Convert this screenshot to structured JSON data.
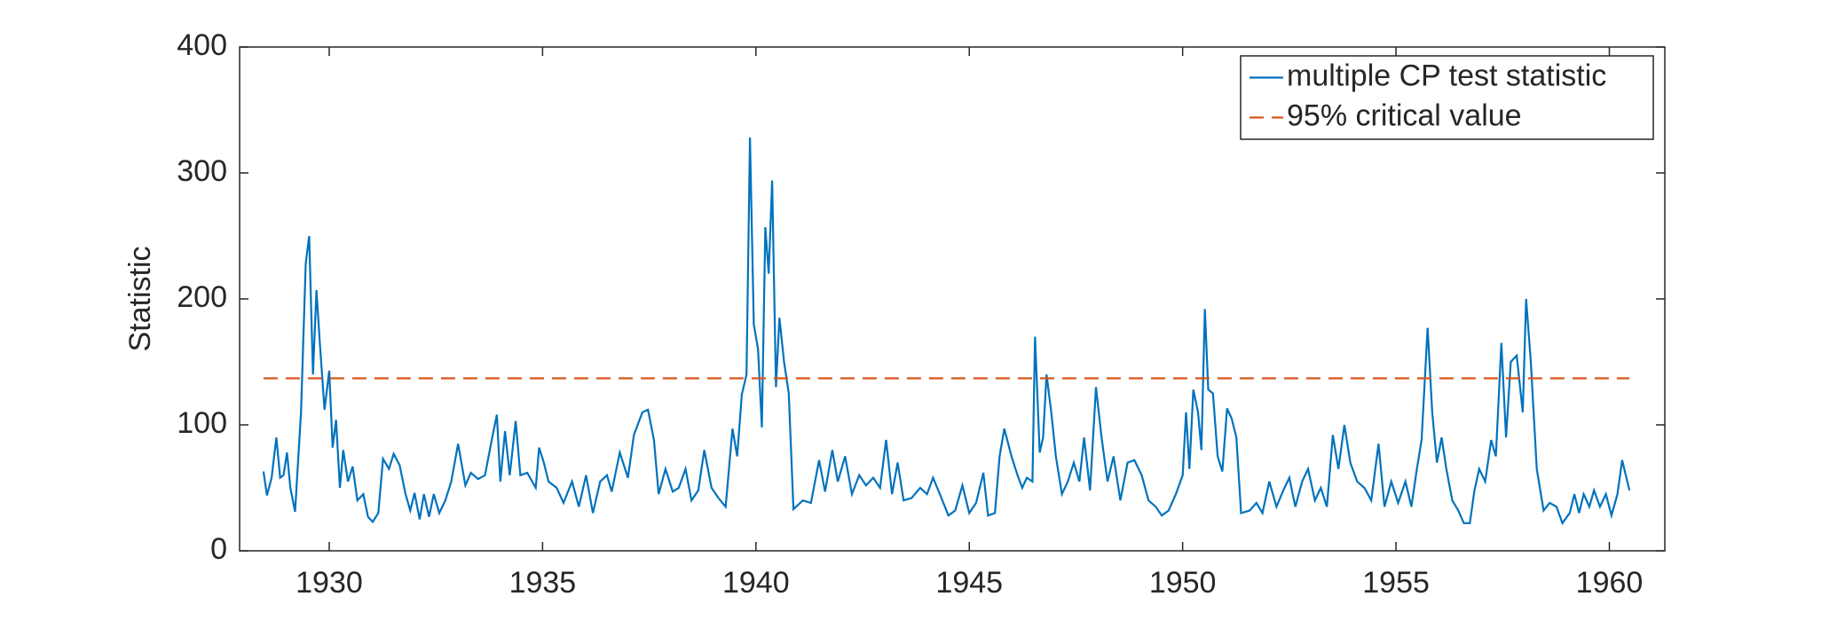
{
  "chart_data": {
    "type": "line",
    "ylabel": "Statistic",
    "xlim": [
      1927.9,
      1961.3
    ],
    "xticks": [
      1930,
      1935,
      1940,
      1945,
      1950,
      1955,
      1960
    ],
    "ylim": [
      0,
      400
    ],
    "yticks": [
      0,
      100,
      200,
      300,
      400
    ],
    "grid": false,
    "legend": "upper right",
    "series": [
      {
        "name": "multiple CP test statistic",
        "color": "#0072bd",
        "style": "solid",
        "x": [
          1928.46,
          1928.54,
          1928.65,
          1928.76,
          1928.85,
          1928.93,
          1929.01,
          1929.09,
          1929.2,
          1929.34,
          1929.45,
          1929.53,
          1929.62,
          1929.7,
          1929.78,
          1929.89,
          1930.0,
          1930.08,
          1930.16,
          1930.25,
          1930.33,
          1930.44,
          1930.55,
          1930.66,
          1930.8,
          1930.91,
          1931.02,
          1931.15,
          1931.26,
          1931.4,
          1931.51,
          1931.65,
          1931.79,
          1931.9,
          1932.0,
          1932.12,
          1932.22,
          1932.34,
          1932.45,
          1932.58,
          1932.72,
          1932.86,
          1933.02,
          1933.19,
          1933.32,
          1933.49,
          1933.65,
          1933.82,
          1933.93,
          1934.01,
          1934.12,
          1934.23,
          1934.37,
          1934.48,
          1934.64,
          1934.84,
          1934.92,
          1935.03,
          1935.14,
          1935.33,
          1935.49,
          1935.69,
          1935.85,
          1936.02,
          1936.18,
          1936.35,
          1936.51,
          1936.62,
          1936.81,
          1937.0,
          1937.14,
          1937.34,
          1937.47,
          1937.61,
          1937.72,
          1937.88,
          1938.05,
          1938.19,
          1938.35,
          1938.49,
          1938.65,
          1938.79,
          1938.96,
          1939.12,
          1939.29,
          1939.45,
          1939.56,
          1939.67,
          1939.78,
          1939.86,
          1939.95,
          1940.05,
          1940.14,
          1940.22,
          1940.3,
          1940.38,
          1940.47,
          1940.55,
          1940.66,
          1940.77,
          1940.88,
          1941.1,
          1941.29,
          1941.48,
          1941.62,
          1941.79,
          1941.92,
          1942.09,
          1942.25,
          1942.42,
          1942.58,
          1942.75,
          1942.91,
          1943.05,
          1943.19,
          1943.32,
          1943.46,
          1943.65,
          1943.85,
          1944.01,
          1944.15,
          1944.31,
          1944.51,
          1944.67,
          1944.84,
          1945.0,
          1945.16,
          1945.33,
          1945.44,
          1945.6,
          1945.71,
          1945.82,
          1945.99,
          1946.13,
          1946.24,
          1946.35,
          1946.48,
          1946.54,
          1946.65,
          1946.73,
          1946.81,
          1946.92,
          1947.03,
          1947.17,
          1947.31,
          1947.45,
          1947.58,
          1947.69,
          1947.83,
          1947.97,
          1948.1,
          1948.24,
          1948.38,
          1948.54,
          1948.71,
          1948.87,
          1949.04,
          1949.2,
          1949.37,
          1949.51,
          1949.67,
          1949.84,
          1950.0,
          1950.08,
          1950.16,
          1950.25,
          1950.36,
          1950.44,
          1950.52,
          1950.6,
          1950.71,
          1950.82,
          1950.93,
          1951.04,
          1951.15,
          1951.26,
          1951.37,
          1951.57,
          1951.73,
          1951.87,
          1952.03,
          1952.2,
          1952.36,
          1952.5,
          1952.64,
          1952.8,
          1952.94,
          1953.1,
          1953.24,
          1953.38,
          1953.52,
          1953.65,
          1953.79,
          1953.93,
          1954.09,
          1954.26,
          1954.42,
          1954.59,
          1954.73,
          1954.89,
          1955.05,
          1955.22,
          1955.36,
          1955.49,
          1955.6,
          1955.74,
          1955.85,
          1955.96,
          1956.07,
          1956.18,
          1956.32,
          1956.46,
          1956.59,
          1956.73,
          1956.84,
          1956.95,
          1957.09,
          1957.23,
          1957.34,
          1957.47,
          1957.58,
          1957.69,
          1957.83,
          1957.97,
          1958.05,
          1958.16,
          1958.3,
          1958.46,
          1958.6,
          1958.76,
          1958.9,
          1959.07,
          1959.18,
          1959.29,
          1959.4,
          1959.53,
          1959.64,
          1959.78,
          1959.92,
          1960.05,
          1960.19,
          1960.3,
          1960.47
        ],
        "values": [
          63,
          44,
          58,
          90,
          58,
          60,
          78,
          50,
          31,
          110,
          228,
          250,
          140,
          207,
          165,
          112,
          143,
          82,
          104,
          50,
          80,
          55,
          67,
          40,
          45,
          27,
          23,
          30,
          73,
          65,
          77,
          68,
          45,
          32,
          46,
          25,
          45,
          27,
          45,
          30,
          40,
          55,
          85,
          52,
          62,
          57,
          60,
          90,
          108,
          55,
          95,
          60,
          103,
          60,
          62,
          50,
          82,
          70,
          55,
          50,
          38,
          55,
          35,
          60,
          30,
          55,
          60,
          47,
          78,
          58,
          92,
          110,
          112,
          88,
          45,
          65,
          47,
          50,
          65,
          40,
          48,
          80,
          50,
          42,
          35,
          97,
          75,
          124,
          140,
          328,
          180,
          160,
          98,
          257,
          220,
          294,
          130,
          185,
          150,
          125,
          33,
          40,
          38,
          72,
          47,
          80,
          55,
          75,
          45,
          60,
          52,
          58,
          50,
          88,
          45,
          70,
          40,
          42,
          50,
          45,
          58,
          45,
          28,
          32,
          52,
          30,
          38,
          62,
          28,
          30,
          75,
          97,
          75,
          60,
          50,
          58,
          55,
          170,
          78,
          90,
          140,
          110,
          75,
          45,
          55,
          70,
          55,
          90,
          48,
          130,
          90,
          55,
          75,
          40,
          70,
          72,
          60,
          40,
          35,
          28,
          32,
          45,
          60,
          110,
          65,
          128,
          110,
          80,
          192,
          128,
          125,
          75,
          63,
          113,
          105,
          90,
          30,
          32,
          38,
          30,
          55,
          35,
          48,
          58,
          35,
          55,
          65,
          40,
          50,
          35,
          92,
          65,
          100,
          70,
          55,
          50,
          40,
          85,
          35,
          55,
          38,
          55,
          35,
          65,
          88,
          177,
          110,
          70,
          90,
          65,
          40,
          32,
          22,
          22,
          48,
          65,
          55,
          88,
          75,
          165,
          90,
          150,
          155,
          110,
          200,
          150,
          65,
          32,
          38,
          35,
          22,
          30,
          45,
          30,
          45,
          35,
          48,
          35,
          45,
          28,
          45,
          72,
          48
        ]
      },
      {
        "name": "95% critical value",
        "color": "#d95319",
        "style": "dashed",
        "x": [
          1928.46,
          1960.47
        ],
        "values": [
          137,
          137
        ]
      }
    ]
  }
}
